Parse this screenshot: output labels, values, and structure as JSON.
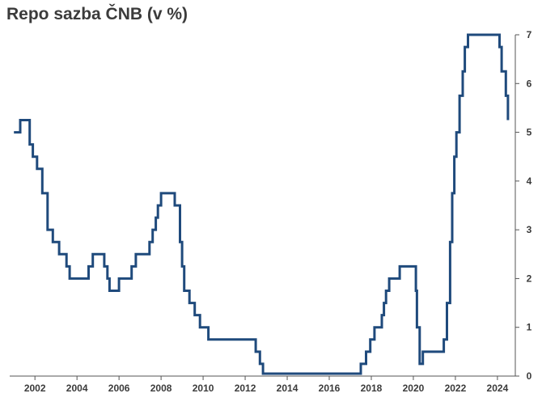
{
  "title": "Repo sazba ČNB (v %)",
  "colors": {
    "series": "#1f4a7c",
    "text": "#3b3b3b",
    "axis": "#555555"
  },
  "chart_data": {
    "type": "line",
    "title": "Repo sazba ČNB (v %)",
    "xlabel": "",
    "ylabel": "",
    "step": true,
    "grid": false,
    "y_axis_side": "right",
    "xlim": [
      2000.8,
      2024.85
    ],
    "ylim": [
      0,
      7
    ],
    "x_ticks": [
      "2002",
      "2004",
      "2006",
      "2008",
      "2010",
      "2012",
      "2014",
      "2016",
      "2018",
      "2020",
      "2022",
      "2024"
    ],
    "y_ticks": [
      "0",
      "1",
      "2",
      "3",
      "4",
      "5",
      "6",
      "7"
    ],
    "series": [
      {
        "name": "",
        "x": [
          2001.0,
          2001.3,
          2001.75,
          2001.9,
          2002.1,
          2002.35,
          2002.6,
          2002.85,
          2003.15,
          2003.5,
          2003.65,
          2004.55,
          2004.75,
          2005.3,
          2005.45,
          2005.55,
          2006.0,
          2006.6,
          2006.8,
          2007.45,
          2007.6,
          2007.75,
          2007.85,
          2008.0,
          2008.2,
          2008.65,
          2008.9,
          2009.0,
          2009.1,
          2009.35,
          2009.6,
          2009.85,
          2010.25,
          2010.4,
          2012.5,
          2012.7,
          2012.85,
          2017.5,
          2017.75,
          2017.95,
          2018.15,
          2018.5,
          2018.6,
          2018.7,
          2018.85,
          2019.35,
          2020.12,
          2020.17,
          2020.3,
          2020.45,
          2021.45,
          2021.6,
          2021.75,
          2021.85,
          2021.95,
          2022.05,
          2022.2,
          2022.35,
          2022.45,
          2022.6,
          2024.1,
          2024.2,
          2024.4,
          2024.5
        ],
        "y": [
          5.0,
          5.25,
          4.75,
          4.5,
          4.25,
          3.75,
          3.0,
          2.75,
          2.5,
          2.25,
          2.0,
          2.25,
          2.5,
          2.25,
          2.0,
          1.75,
          2.0,
          2.25,
          2.5,
          2.75,
          3.0,
          3.25,
          3.5,
          3.75,
          3.75,
          3.5,
          2.75,
          2.25,
          1.75,
          1.5,
          1.25,
          1.0,
          0.75,
          0.75,
          0.5,
          0.25,
          0.05,
          0.25,
          0.5,
          0.75,
          1.0,
          1.25,
          1.5,
          1.75,
          2.0,
          2.25,
          1.75,
          1.0,
          0.25,
          0.5,
          0.75,
          1.5,
          2.75,
          3.75,
          4.5,
          5.0,
          5.75,
          6.25,
          6.75,
          7.0,
          6.75,
          6.25,
          5.75,
          5.25
        ]
      }
    ]
  }
}
